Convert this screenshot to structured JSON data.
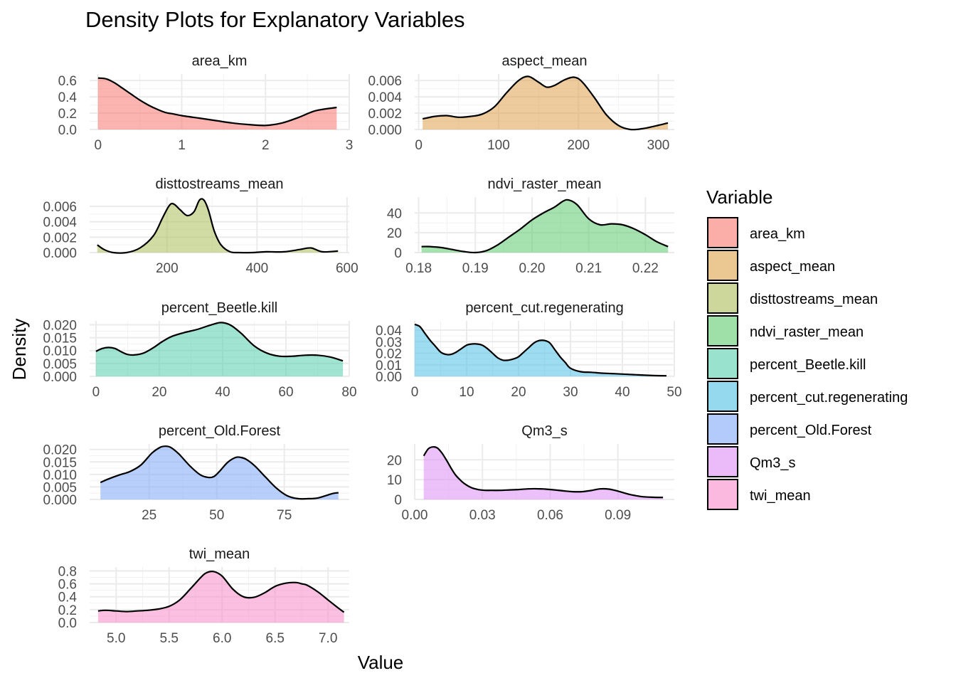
{
  "chart_data": {
    "type": "area",
    "title": "Density Plots for Explanatory Variables",
    "xlabel": "Value",
    "ylabel": "Density",
    "legend": {
      "title": "Variable",
      "placement": "right"
    },
    "grid": true,
    "panels": [
      {
        "name": "area_km",
        "color": "#F8766D",
        "xlim": [
          -0.1,
          3.0
        ],
        "ylim": [
          0,
          0.68
        ],
        "xticks": [
          0,
          1,
          2,
          3
        ],
        "xtick_labels": [
          "0",
          "1",
          "2",
          "3"
        ],
        "yticks": [
          0,
          0.2,
          0.4,
          0.6
        ],
        "ytick_labels": [
          "0.0",
          "0.2",
          "0.4",
          "0.6"
        ],
        "x": [
          0.0,
          0.1,
          0.2,
          0.3,
          0.4,
          0.5,
          0.6,
          0.7,
          0.8,
          0.9,
          1.0,
          1.2,
          1.4,
          1.6,
          1.8,
          2.0,
          2.2,
          2.4,
          2.6,
          2.85
        ],
        "y": [
          0.63,
          0.62,
          0.57,
          0.5,
          0.43,
          0.36,
          0.3,
          0.25,
          0.21,
          0.19,
          0.17,
          0.14,
          0.11,
          0.08,
          0.06,
          0.05,
          0.08,
          0.15,
          0.23,
          0.27
        ]
      },
      {
        "name": "aspect_mean",
        "color": "#DEA14A",
        "xlim": [
          -5,
          320
        ],
        "ylim": [
          0,
          0.0068
        ],
        "xticks": [
          0,
          100,
          200,
          300
        ],
        "xtick_labels": [
          "0",
          "100",
          "200",
          "300"
        ],
        "yticks": [
          0,
          0.002,
          0.004,
          0.006
        ],
        "ytick_labels": [
          "0.000",
          "0.002",
          "0.004",
          "0.006"
        ],
        "x": [
          5,
          20,
          35,
          50,
          65,
          80,
          95,
          110,
          125,
          137,
          150,
          160,
          170,
          183,
          195,
          205,
          220,
          235,
          250,
          265,
          280,
          295,
          312
        ],
        "y": [
          0.0013,
          0.0016,
          0.0017,
          0.0015,
          0.0016,
          0.0019,
          0.0028,
          0.0045,
          0.006,
          0.0065,
          0.0058,
          0.0052,
          0.0054,
          0.0061,
          0.0064,
          0.0058,
          0.0039,
          0.0018,
          0.0005,
          0.0,
          0.0001,
          0.0004,
          0.0008
        ]
      },
      {
        "name": "disttostreams_mean",
        "color": "#ABBD5A",
        "xlim": [
          28,
          605
        ],
        "ylim": [
          0,
          0.0072
        ],
        "xticks": [
          200,
          400,
          600
        ],
        "xtick_labels": [
          "200",
          "400",
          "600"
        ],
        "yticks": [
          0,
          0.002,
          0.004,
          0.006
        ],
        "ytick_labels": [
          "0.000",
          "0.002",
          "0.004",
          "0.006"
        ],
        "x": [
          45,
          60,
          80,
          110,
          140,
          170,
          190,
          205,
          215,
          230,
          245,
          260,
          272,
          282,
          292,
          305,
          320,
          340,
          360,
          390,
          420,
          460,
          495,
          520,
          545,
          580
        ],
        "y": [
          0.001,
          0.0004,
          0.0,
          0.0,
          0.0006,
          0.0022,
          0.0045,
          0.0061,
          0.0063,
          0.0055,
          0.0048,
          0.0053,
          0.0068,
          0.0068,
          0.0055,
          0.0028,
          0.001,
          0.0001,
          0.0,
          0.0,
          0.0001,
          0.0001,
          0.0004,
          0.0006,
          0.0001,
          0.0002
        ]
      },
      {
        "name": "ndvi_raster_mean",
        "color": "#5DCB6E",
        "xlim": [
          0.1793,
          0.2251
        ],
        "ylim": [
          0,
          56
        ],
        "xticks": [
          0.18,
          0.19,
          0.2,
          0.21,
          0.22
        ],
        "xtick_labels": [
          "0.18",
          "0.19",
          "0.20",
          "0.21",
          "0.22"
        ],
        "yticks": [
          0,
          20,
          40
        ],
        "ytick_labels": [
          "0",
          "20",
          "40"
        ],
        "x": [
          0.1805,
          0.182,
          0.184,
          0.186,
          0.188,
          0.19,
          0.192,
          0.194,
          0.196,
          0.198,
          0.2,
          0.202,
          0.204,
          0.2055,
          0.2065,
          0.208,
          0.21,
          0.212,
          0.214,
          0.216,
          0.218,
          0.22,
          0.222,
          0.224
        ],
        "y": [
          6,
          6,
          5,
          3,
          1,
          0,
          2,
          8,
          16,
          24,
          33,
          40,
          46,
          52,
          53,
          48,
          34,
          28,
          29,
          28,
          24,
          18,
          11,
          6
        ]
      },
      {
        "name": "percent_Beetle.kill",
        "color": "#53CEAD",
        "xlim": [
          -2,
          80
        ],
        "ylim": [
          0,
          0.0215
        ],
        "xticks": [
          0,
          20,
          40,
          60,
          80
        ],
        "xtick_labels": [
          "0",
          "20",
          "40",
          "60",
          "80"
        ],
        "yticks": [
          0,
          0.005,
          0.01,
          0.015,
          0.02
        ],
        "ytick_labels": [
          "0.000",
          "0.005",
          "0.010",
          "0.015",
          "0.020"
        ],
        "x": [
          0,
          2,
          4,
          6,
          8,
          10,
          12,
          15,
          18,
          21,
          24,
          28,
          32,
          36,
          39,
          41,
          43,
          46,
          50,
          54,
          58,
          62,
          66,
          70,
          74,
          78
        ],
        "y": [
          0.0097,
          0.0108,
          0.0112,
          0.0108,
          0.0095,
          0.0085,
          0.0083,
          0.009,
          0.011,
          0.0135,
          0.0155,
          0.017,
          0.0182,
          0.0198,
          0.0208,
          0.0206,
          0.0195,
          0.0165,
          0.0118,
          0.009,
          0.0078,
          0.0078,
          0.0082,
          0.0082,
          0.0075,
          0.006
        ]
      },
      {
        "name": "percent_cut.regenerating",
        "color": "#4FC0E5",
        "xlim": [
          0,
          50
        ],
        "ylim": [
          0,
          0.048
        ],
        "xticks": [
          0,
          10,
          20,
          30,
          40,
          50
        ],
        "xtick_labels": [
          "0",
          "10",
          "20",
          "30",
          "40",
          "50"
        ],
        "yticks": [
          0,
          0.01,
          0.02,
          0.03,
          0.04
        ],
        "ytick_labels": [
          "0.00",
          "0.01",
          "0.02",
          "0.03",
          "0.04"
        ],
        "x": [
          0,
          1,
          2,
          3,
          4,
          5,
          6,
          7,
          8,
          9,
          10,
          11,
          12,
          13,
          14,
          15,
          16,
          17,
          18,
          19,
          20,
          21,
          22,
          23,
          24,
          25,
          26,
          27,
          28,
          29,
          30,
          32,
          34,
          36,
          38,
          40,
          43,
          46,
          48.5
        ],
        "y": [
          0.045,
          0.043,
          0.037,
          0.031,
          0.026,
          0.021,
          0.019,
          0.019,
          0.021,
          0.024,
          0.027,
          0.028,
          0.028,
          0.027,
          0.024,
          0.02,
          0.016,
          0.014,
          0.014,
          0.015,
          0.017,
          0.021,
          0.025,
          0.029,
          0.031,
          0.031,
          0.029,
          0.023,
          0.017,
          0.012,
          0.007,
          0.004,
          0.0035,
          0.0028,
          0.0024,
          0.002,
          0.0013,
          0.0007,
          0.0005
        ]
      },
      {
        "name": "percent_Old.Forest",
        "color": "#7EA8F9",
        "xlim": [
          3,
          99
        ],
        "ylim": [
          0,
          0.0222
        ],
        "xticks": [
          25,
          50,
          75
        ],
        "xtick_labels": [
          "25",
          "50",
          "75"
        ],
        "yticks": [
          0,
          0.005,
          0.01,
          0.015,
          0.02
        ],
        "ytick_labels": [
          "0.000",
          "0.005",
          "0.010",
          "0.015",
          "0.020"
        ],
        "x": [
          7,
          10,
          14,
          18,
          22,
          26,
          29,
          31,
          33,
          36,
          40,
          44,
          47,
          49,
          51,
          54,
          57,
          59,
          61,
          64,
          68,
          72,
          76,
          80,
          84,
          87,
          90,
          93,
          95
        ],
        "y": [
          0.0068,
          0.0082,
          0.0098,
          0.0112,
          0.0138,
          0.0185,
          0.0208,
          0.0213,
          0.0208,
          0.0182,
          0.0135,
          0.0098,
          0.0088,
          0.0092,
          0.0112,
          0.0148,
          0.0168,
          0.0168,
          0.016,
          0.0135,
          0.009,
          0.0046,
          0.0015,
          0.0003,
          0.0003,
          0.0005,
          0.0014,
          0.0024,
          0.0027
        ]
      },
      {
        "name": "Qm3_s",
        "color": "#DD8EF5",
        "xlim": [
          0,
          0.115
        ],
        "ylim": [
          0,
          28
        ],
        "xticks": [
          0,
          0.03,
          0.06,
          0.09
        ],
        "xtick_labels": [
          "0.00",
          "0.03",
          "0.06",
          "0.09"
        ],
        "yticks": [
          0,
          10,
          20
        ],
        "ytick_labels": [
          "0",
          "10",
          "20"
        ],
        "x": [
          0.004,
          0.006,
          0.008,
          0.01,
          0.012,
          0.014,
          0.016,
          0.018,
          0.02,
          0.022,
          0.025,
          0.028,
          0.031,
          0.034,
          0.038,
          0.042,
          0.046,
          0.05,
          0.054,
          0.058,
          0.062,
          0.066,
          0.07,
          0.074,
          0.078,
          0.082,
          0.086,
          0.09,
          0.095,
          0.1,
          0.105,
          0.11
        ],
        "y": [
          22,
          25.5,
          26.5,
          26,
          23.5,
          20,
          16,
          12.5,
          10,
          8,
          6,
          5,
          4.6,
          4.6,
          4.6,
          4.8,
          5,
          5.3,
          5.4,
          5.2,
          4.8,
          4.3,
          3.9,
          3.9,
          4.5,
          5.3,
          5.2,
          4.2,
          2.6,
          1.5,
          1.1,
          1.0
        ]
      },
      {
        "name": "twi_mean",
        "color": "#F88BC9",
        "xlim": [
          4.75,
          7.2
        ],
        "ylim": [
          0,
          0.86
        ],
        "xticks": [
          5.0,
          5.5,
          6.0,
          6.5,
          7.0
        ],
        "xtick_labels": [
          "5.0",
          "5.5",
          "6.0",
          "6.5",
          "7.0"
        ],
        "yticks": [
          0,
          0.2,
          0.4,
          0.6,
          0.8
        ],
        "ytick_labels": [
          "0.0",
          "0.2",
          "0.4",
          "0.6",
          "0.8"
        ],
        "x": [
          4.83,
          4.9,
          5.0,
          5.1,
          5.2,
          5.3,
          5.4,
          5.5,
          5.6,
          5.7,
          5.8,
          5.85,
          5.92,
          6.0,
          6.1,
          6.2,
          6.3,
          6.4,
          6.5,
          6.6,
          6.7,
          6.75,
          6.8,
          6.9,
          7.0,
          7.1,
          7.15
        ],
        "y": [
          0.18,
          0.19,
          0.18,
          0.17,
          0.18,
          0.19,
          0.21,
          0.25,
          0.35,
          0.52,
          0.7,
          0.77,
          0.79,
          0.72,
          0.52,
          0.4,
          0.39,
          0.46,
          0.56,
          0.61,
          0.62,
          0.6,
          0.58,
          0.48,
          0.35,
          0.22,
          0.16
        ]
      }
    ]
  }
}
